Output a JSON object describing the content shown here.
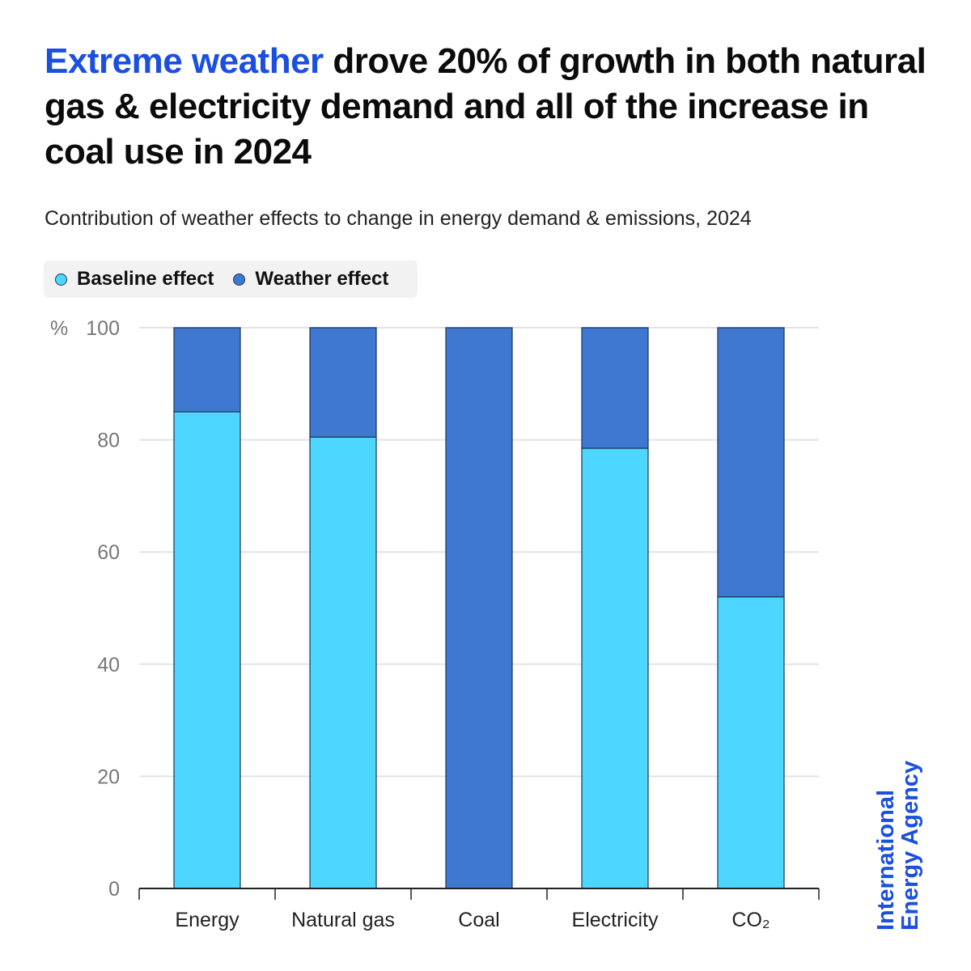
{
  "title": {
    "highlight": "Extreme weather",
    "rest": " drove 20% of growth in both natural gas & electricity demand and all of the increase in coal use in 2024"
  },
  "subtitle": "Contribution of weather effects to change in energy demand & emissions, 2024",
  "brand": {
    "line1": "International",
    "line2": "Energy Agency"
  },
  "colors": {
    "baseline": "#4dd6ff",
    "weather": "#3e78d1",
    "accent": "#1a4fe0"
  },
  "chart_data": {
    "type": "bar",
    "stacked": true,
    "title": "Contribution of weather effects to change in energy demand & emissions, 2024",
    "xlabel": "",
    "ylabel": "%",
    "ylim": [
      0,
      100
    ],
    "yticks": [
      0,
      20,
      40,
      60,
      80,
      100
    ],
    "grid": true,
    "legend_position": "top-left",
    "categories": [
      "Energy",
      "Natural gas",
      "Coal",
      "Electricity",
      "CO₂"
    ],
    "series": [
      {
        "name": "Baseline effect",
        "values": [
          85,
          80.5,
          0,
          78.5,
          52
        ]
      },
      {
        "name": "Weather effect",
        "values": [
          15,
          19.5,
          100,
          21.5,
          48
        ]
      }
    ]
  }
}
